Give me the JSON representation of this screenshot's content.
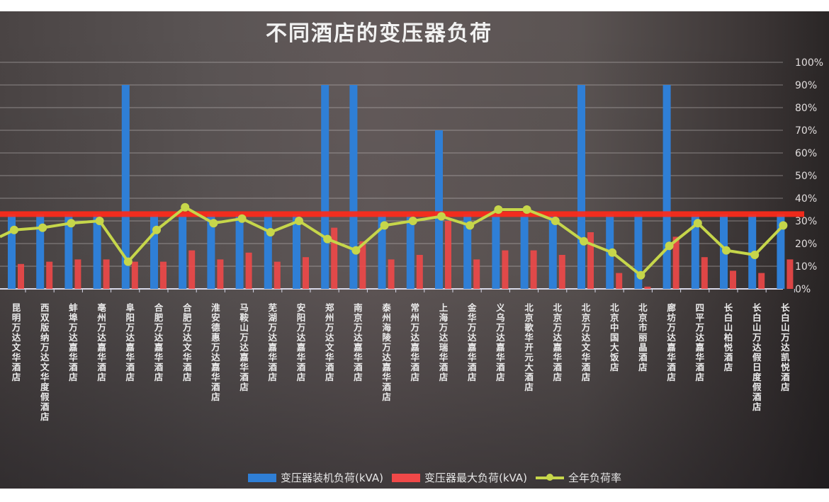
{
  "chart_data": {
    "type": "bar",
    "title": "不同酒店的变压器负荷",
    "xlabel": "",
    "ylabel": "",
    "y_axis_right": {
      "ticks": [
        "0%",
        "10%",
        "20%",
        "30%",
        "40%",
        "50%",
        "60%",
        "70%",
        "80%",
        "90%",
        "100%"
      ],
      "ylim": [
        0,
        100
      ]
    },
    "grid": true,
    "legend_position": "bottom",
    "categories": [
      "昆明万达文华酒店",
      "西双版纳万达文华度假酒店",
      "蚌埠万达嘉华酒店",
      "亳州万达嘉华酒店",
      "阜阳万达嘉华酒店",
      "合肥万达嘉华酒店",
      "合肥万达文华酒店",
      "淮安德惠万达嘉华酒店",
      "马鞍山万达嘉华酒店",
      "芜湖万达嘉华酒店",
      "安阳万达嘉华酒店",
      "郑州万达文华酒店",
      "南京万达嘉华酒店",
      "泰州海陵万达嘉华酒店",
      "常州万达嘉华酒店",
      "上海万达瑞华酒店",
      "金华万达嘉华酒店",
      "义乌万达嘉华酒店",
      "北京歌华开元大酒店",
      "北京万达嘉华酒店",
      "北京万达文华酒店",
      "北京中国大饭店",
      "北京市丽晶酒店",
      "廊坊万达嘉华酒店",
      "四平万达嘉华酒店",
      "长白山柏悦酒店",
      "长白山万达假日度假酒店",
      "长白山万达凯悦酒店"
    ],
    "series": [
      {
        "name": "变压器装机负荷(kVA)",
        "type": "bar",
        "color": "#2f7fd6",
        "values": [
          33,
          33,
          33,
          33,
          90,
          33,
          33,
          33,
          33,
          33,
          33,
          90,
          90,
          33,
          33,
          70,
          33,
          33,
          33,
          33,
          90,
          33,
          33,
          90,
          33,
          33,
          33,
          33
        ]
      },
      {
        "name": "变压器最大负荷(kVA)",
        "type": "bar",
        "color": "#f04848",
        "values": [
          11,
          12,
          13,
          13,
          12,
          12,
          17,
          13,
          16,
          12,
          14,
          27,
          21,
          13,
          15,
          30,
          13,
          17,
          17,
          15,
          25,
          7,
          1,
          23,
          14,
          8,
          7,
          13
        ]
      },
      {
        "name": "全年负荷率",
        "type": "line",
        "color": "#c6d64a",
        "values": [
          26,
          27,
          29,
          30,
          12,
          26,
          36,
          29,
          31,
          25,
          30,
          22,
          17,
          28,
          30,
          32,
          28,
          35,
          35,
          30,
          21,
          16,
          6,
          19,
          29,
          17,
          15,
          28
        ]
      }
    ],
    "reference_line": {
      "value": 33,
      "color": "#ff2a1a"
    }
  },
  "legend": {
    "item1": "变压器装机负荷(kVA)",
    "item2": "变压器最大负荷(kVA)",
    "item3": "全年负荷率"
  }
}
